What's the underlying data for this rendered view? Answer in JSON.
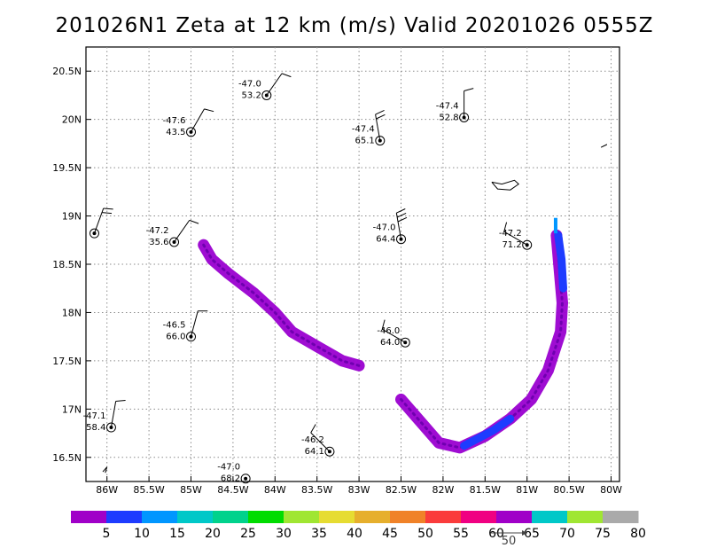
{
  "title": "201026N1 Zeta at 12 km (m/s) Valid 20201026 0555Z",
  "reference_vector": {
    "label": "50"
  },
  "chart_data": {
    "type": "scatter",
    "title": "201026N1 Zeta at 12 km (m/s) Valid 20201026 0555Z",
    "xlim": [
      -86.25,
      -79.9
    ],
    "ylim": [
      16.25,
      20.75
    ],
    "grid": true,
    "x_ticks": [
      {
        "value": -86.0,
        "label": "86W"
      },
      {
        "value": -85.5,
        "label": "85.5W"
      },
      {
        "value": -85.0,
        "label": "85W"
      },
      {
        "value": -84.5,
        "label": "84.5W"
      },
      {
        "value": -84.0,
        "label": "84W"
      },
      {
        "value": -83.5,
        "label": "83.5W"
      },
      {
        "value": -83.0,
        "label": "83W"
      },
      {
        "value": -82.5,
        "label": "82.5W"
      },
      {
        "value": -82.0,
        "label": "82W"
      },
      {
        "value": -81.5,
        "label": "81.5W"
      },
      {
        "value": -81.0,
        "label": "81W"
      },
      {
        "value": -80.5,
        "label": "80.5W"
      },
      {
        "value": -80.0,
        "label": "80W"
      }
    ],
    "y_ticks": [
      {
        "value": 16.5,
        "label": "16.5N"
      },
      {
        "value": 17.0,
        "label": "17N"
      },
      {
        "value": 17.5,
        "label": "17.5N"
      },
      {
        "value": 18.0,
        "label": "18N"
      },
      {
        "value": 18.5,
        "label": "18.5N"
      },
      {
        "value": 19.0,
        "label": "19N"
      },
      {
        "value": 19.5,
        "label": "19.5N"
      },
      {
        "value": 20.0,
        "label": "20N"
      },
      {
        "value": 20.5,
        "label": "20.5N"
      }
    ],
    "colorbar": {
      "ticks": [
        "5",
        "10",
        "15",
        "20",
        "25",
        "30",
        "35",
        "40",
        "45",
        "50",
        "55",
        "60",
        "65",
        "70",
        "75",
        "80"
      ],
      "colors": [
        "#a000c8",
        "#1e3cff",
        "#0096ff",
        "#00c8c8",
        "#00d28c",
        "#00dc00",
        "#a0e632",
        "#e6dc32",
        "#e6af2d",
        "#f08228",
        "#fa3c3c",
        "#f00082",
        "#a000c8",
        "#00c8c8",
        "#a0e632",
        "#aaaaaa"
      ]
    },
    "stations": [
      {
        "lon": -84.1,
        "lat": 20.25,
        "upper": "-47.0",
        "lower": "53.2",
        "barb_dir": 55,
        "barb_flags": 1
      },
      {
        "lon": -85.0,
        "lat": 19.87,
        "upper": "-47.6",
        "lower": "43.5",
        "barb_dir": 60,
        "barb_flags": 1
      },
      {
        "lon": -82.75,
        "lat": 19.78,
        "upper": "-47.4",
        "lower": "65.1",
        "barb_dir": 100,
        "barb_flags": 2
      },
      {
        "lon": -81.75,
        "lat": 20.02,
        "upper": "-47.4",
        "lower": "52.8",
        "barb_dir": 90,
        "barb_flags": 1
      },
      {
        "lon": -86.15,
        "lat": 18.82,
        "upper": "",
        "lower": "",
        "barb_dir": 70,
        "barb_flags": 2
      },
      {
        "lon": -85.2,
        "lat": 18.73,
        "upper": "-47.2",
        "lower": "35.6",
        "barb_dir": 55,
        "barb_flags": 1
      },
      {
        "lon": -82.5,
        "lat": 18.76,
        "upper": "-47.0",
        "lower": "64.4",
        "barb_dir": 100,
        "barb_flags": 3
      },
      {
        "lon": -81.0,
        "lat": 18.7,
        "upper": "-47.2",
        "lower": "71.2",
        "barb_dir": 150,
        "barb_flags": 1
      },
      {
        "lon": -85.0,
        "lat": 17.75,
        "upper": "-46.5",
        "lower": "66.0",
        "barb_dir": 75,
        "barb_flags": 1
      },
      {
        "lon": -82.45,
        "lat": 17.69,
        "upper": "-46.0",
        "lower": "64.0",
        "barb_dir": 150,
        "barb_flags": 1
      },
      {
        "lon": -85.95,
        "lat": 16.81,
        "upper": "-47.1",
        "lower": "58.4",
        "barb_dir": 80,
        "barb_flags": 1
      },
      {
        "lon": -83.35,
        "lat": 16.56,
        "upper": "-46.2",
        "lower": "64.1",
        "barb_dir": 135,
        "barb_flags": 1
      },
      {
        "lon": -84.35,
        "lat": 16.28,
        "upper": "-47.0",
        "lower": "68.2",
        "barb_dir": 0,
        "barb_flags": 0
      }
    ],
    "vorticity_band_west": [
      [
        -84.85,
        18.7
      ],
      [
        -84.75,
        18.55
      ],
      [
        -84.55,
        18.4
      ],
      [
        -84.25,
        18.2
      ],
      [
        -84.0,
        18.0
      ],
      [
        -83.8,
        17.8
      ],
      [
        -83.5,
        17.65
      ],
      [
        -83.2,
        17.5
      ],
      [
        -83.0,
        17.45
      ]
    ],
    "vorticity_band_east": [
      [
        -82.5,
        17.1
      ],
      [
        -82.3,
        16.9
      ],
      [
        -82.05,
        16.65
      ],
      [
        -81.8,
        16.6
      ],
      [
        -81.5,
        16.72
      ],
      [
        -81.2,
        16.9
      ],
      [
        -80.95,
        17.1
      ],
      [
        -80.75,
        17.4
      ],
      [
        -80.6,
        17.8
      ],
      [
        -80.58,
        18.1
      ],
      [
        -80.62,
        18.5
      ],
      [
        -80.65,
        18.8
      ]
    ],
    "coastlines": [
      [
        [
          -81.42,
          19.35
        ],
        [
          -81.35,
          19.28
        ],
        [
          -81.2,
          19.27
        ],
        [
          -81.1,
          19.33
        ],
        [
          -81.15,
          19.37
        ],
        [
          -81.3,
          19.33
        ],
        [
          -81.42,
          19.35
        ]
      ],
      [
        [
          -80.12,
          19.71
        ],
        [
          -80.05,
          19.74
        ],
        [
          -80.1,
          19.72
        ]
      ],
      [
        [
          -86.05,
          16.35
        ],
        [
          -86.0,
          16.4
        ],
        [
          -86.02,
          16.34
        ]
      ]
    ]
  }
}
